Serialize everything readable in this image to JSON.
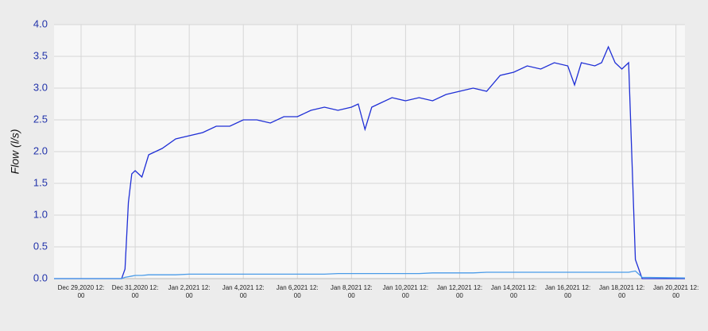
{
  "chart_data": {
    "type": "line",
    "y_label": "Flow (l/s)",
    "x": [
      "2020-12-28T12:00",
      "2020-12-30T12:00",
      "2020-12-31T00:00",
      "2020-12-31T03:00",
      "2020-12-31T06:00",
      "2020-12-31T09:00",
      "2020-12-31T12:00",
      "2020-12-31T18:00",
      "2021-01-01T00:00",
      "2021-01-01T12:00",
      "2021-01-02T00:00",
      "2021-01-02T12:00",
      "2021-01-03T00:00",
      "2021-01-03T12:00",
      "2021-01-04T00:00",
      "2021-01-04T12:00",
      "2021-01-05T00:00",
      "2021-01-05T12:00",
      "2021-01-06T00:00",
      "2021-01-06T12:00",
      "2021-01-07T00:00",
      "2021-01-07T12:00",
      "2021-01-08T00:00",
      "2021-01-08T12:00",
      "2021-01-08T18:00",
      "2021-01-09T00:00",
      "2021-01-09T06:00",
      "2021-01-09T12:00",
      "2021-01-10T00:00",
      "2021-01-10T12:00",
      "2021-01-11T00:00",
      "2021-01-11T12:00",
      "2021-01-12T00:00",
      "2021-01-12T12:00",
      "2021-01-13T00:00",
      "2021-01-13T12:00",
      "2021-01-14T00:00",
      "2021-01-14T12:00",
      "2021-01-15T00:00",
      "2021-01-15T12:00",
      "2021-01-16T00:00",
      "2021-01-16T12:00",
      "2021-01-16T18:00",
      "2021-01-17T00:00",
      "2021-01-17T12:00",
      "2021-01-17T18:00",
      "2021-01-18T00:00",
      "2021-01-18T06:00",
      "2021-01-18T12:00",
      "2021-01-18T18:00",
      "2021-01-19T00:00",
      "2021-01-19T06:00",
      "2021-01-20T20:00"
    ],
    "series": [
      {
        "color": "#1f2fd6",
        "values": [
          0,
          0,
          0,
          0.15,
          1.2,
          1.65,
          1.7,
          1.6,
          1.95,
          2.05,
          2.2,
          2.25,
          2.3,
          2.4,
          2.4,
          2.5,
          2.5,
          2.45,
          2.55,
          2.55,
          2.65,
          2.7,
          2.65,
          2.7,
          2.75,
          2.35,
          2.7,
          2.75,
          2.85,
          2.8,
          2.85,
          2.8,
          2.9,
          2.95,
          3.0,
          2.95,
          3.2,
          3.25,
          3.35,
          3.3,
          3.4,
          3.35,
          3.05,
          3.4,
          3.35,
          3.4,
          3.65,
          3.4,
          3.3,
          3.4,
          0.3,
          0,
          0
        ]
      },
      {
        "color": "#4a9be8",
        "values": [
          0,
          0,
          0,
          0.02,
          0.03,
          0.04,
          0.05,
          0.05,
          0.06,
          0.06,
          0.06,
          0.07,
          0.07,
          0.07,
          0.07,
          0.07,
          0.07,
          0.07,
          0.07,
          0.07,
          0.07,
          0.07,
          0.08,
          0.08,
          0.08,
          0.08,
          0.08,
          0.08,
          0.08,
          0.08,
          0.08,
          0.09,
          0.09,
          0.09,
          0.09,
          0.1,
          0.1,
          0.1,
          0.1,
          0.1,
          0.1,
          0.1,
          0.1,
          0.1,
          0.1,
          0.1,
          0.1,
          0.1,
          0.1,
          0.1,
          0.12,
          0.02,
          0.01
        ]
      }
    ],
    "xlim": [
      "2020-12-28T12:00",
      "2021-01-20T20:00"
    ],
    "xticks": [
      {
        "value": "2020-12-29T12:00",
        "label": "Dec 29,2020 12:\n00"
      },
      {
        "value": "2020-12-31T12:00",
        "label": "Dec 31,2020 12:\n00"
      },
      {
        "value": "2021-01-02T12:00",
        "label": "Jan 2,2021 12:\n00"
      },
      {
        "value": "2021-01-04T12:00",
        "label": "Jan 4,2021 12:\n00"
      },
      {
        "value": "2021-01-06T12:00",
        "label": "Jan 6,2021 12:\n00"
      },
      {
        "value": "2021-01-08T12:00",
        "label": "Jan 8,2021 12:\n00"
      },
      {
        "value": "2021-01-10T12:00",
        "label": "Jan 10,2021 12:\n00"
      },
      {
        "value": "2021-01-12T12:00",
        "label": "Jan 12,2021 12:\n00"
      },
      {
        "value": "2021-01-14T12:00",
        "label": "Jan 14,2021 12:\n00"
      },
      {
        "value": "2021-01-16T12:00",
        "label": "Jan 16,2021 12:\n00"
      },
      {
        "value": "2021-01-18T12:00",
        "label": "Jan 18,2021 12:\n00"
      },
      {
        "value": "2021-01-20T12:00",
        "label": "Jan 20,2021 12:\n00"
      }
    ],
    "ylim": [
      0,
      4
    ],
    "yticks": [
      {
        "value": 0,
        "label": "0.0"
      },
      {
        "value": 0.5,
        "label": "0.5"
      },
      {
        "value": 1,
        "label": "1.0"
      },
      {
        "value": 1.5,
        "label": "1.5"
      },
      {
        "value": 2,
        "label": "2.0"
      },
      {
        "value": 2.5,
        "label": "2.5"
      },
      {
        "value": 3,
        "label": "3.0"
      },
      {
        "value": 3.5,
        "label": "3.5"
      },
      {
        "value": 4,
        "label": "4.0"
      }
    ],
    "grid": true
  }
}
